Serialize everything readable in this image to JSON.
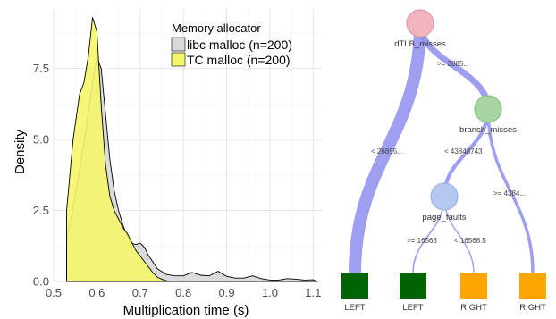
{
  "chart_data": [
    {
      "type": "area",
      "subtype": "density",
      "xlabel": "Multiplication time (s)",
      "ylabel": "Density",
      "xlim": [
        0.5,
        1.12
      ],
      "ylim": [
        0,
        9.6
      ],
      "xticks": [
        0.5,
        0.6,
        0.7,
        0.8,
        0.9,
        1.0,
        1.1
      ],
      "xtick_labels": [
        "0.5",
        "0.6",
        "0.7",
        "0.8",
        "0.9",
        "1.0",
        "1.1"
      ],
      "yticks": [
        0.0,
        2.5,
        5.0,
        7.5
      ],
      "ytick_labels": [
        "0.0",
        "2.5",
        "5.0",
        "7.5"
      ],
      "grid": true,
      "legend": {
        "title": "Memory allocator",
        "position": "top-right"
      },
      "series": [
        {
          "name": "libc malloc (n=200)",
          "fill": "#d9d9d9",
          "x": [
            0.53,
            0.545,
            0.56,
            0.575,
            0.59,
            0.6,
            0.61,
            0.62,
            0.63,
            0.64,
            0.65,
            0.66,
            0.67,
            0.68,
            0.69,
            0.7,
            0.71,
            0.72,
            0.74,
            0.76,
            0.78,
            0.8,
            0.82,
            0.84,
            0.86,
            0.88,
            0.9,
            0.92,
            0.94,
            0.96,
            0.98,
            1.0,
            1.02,
            1.04,
            1.06,
            1.08,
            1.1,
            1.11
          ],
          "values": [
            1.5,
            2.6,
            3.9,
            5.4,
            7.0,
            7.9,
            7.5,
            5.9,
            4.3,
            3.2,
            2.5,
            2.0,
            1.6,
            1.35,
            1.3,
            1.35,
            1.2,
            0.9,
            0.45,
            0.25,
            0.2,
            0.2,
            0.32,
            0.22,
            0.2,
            0.36,
            0.18,
            0.12,
            0.12,
            0.2,
            0.1,
            0.05,
            0.05,
            0.1,
            0.08,
            0.05,
            0.06,
            0.0
          ]
        },
        {
          "name": "TC malloc (n=200)",
          "fill": "#f5f56a",
          "x": [
            0.53,
            0.545,
            0.56,
            0.57,
            0.58,
            0.59,
            0.6,
            0.61,
            0.62,
            0.63,
            0.64,
            0.65,
            0.66,
            0.67,
            0.68,
            0.69,
            0.7,
            0.71,
            0.72,
            0.73,
            0.74,
            0.75,
            0.76,
            0.77
          ],
          "values": [
            2.5,
            5.0,
            6.6,
            7.0,
            7.9,
            9.3,
            8.8,
            6.2,
            4.1,
            3.0,
            2.5,
            2.2,
            1.9,
            1.7,
            1.4,
            1.1,
            0.9,
            0.7,
            0.5,
            0.3,
            0.15,
            0.08,
            0.03,
            0.0
          ]
        }
      ]
    },
    {
      "type": "diagram",
      "subtype": "decision-tree",
      "nodes": [
        {
          "id": "dTLB_misses",
          "label": "dTLB_misses",
          "color": "#f2b5c0",
          "stroke": "#e39aa8"
        },
        {
          "id": "branch_misses",
          "label": "branch_misses",
          "color": "#a8d5a2",
          "stroke": "#8cc486"
        },
        {
          "id": "page_faults",
          "label": "page_faults",
          "color": "#b5c8f0",
          "stroke": "#98b2e6"
        },
        {
          "id": "leaf1",
          "label": "LEFT",
          "color": "#006400"
        },
        {
          "id": "leaf2",
          "label": "LEFT",
          "color": "#006400"
        },
        {
          "id": "leaf3",
          "label": "RIGHT",
          "color": "#ffa500"
        },
        {
          "id": "leaf4",
          "label": "RIGHT",
          "color": "#ffa500"
        }
      ],
      "edges": [
        {
          "from": "dTLB_misses",
          "to": "branch_misses",
          "label": ">= 2885...",
          "weight": 0.5
        },
        {
          "from": "dTLB_misses",
          "to": "leaf1",
          "label": "< 26855...",
          "weight": 1.0
        },
        {
          "from": "branch_misses",
          "to": "page_faults",
          "label": "< 43848743",
          "weight": 0.3
        },
        {
          "from": "branch_misses",
          "to": "leaf4",
          "label": ">= 4384...",
          "weight": 0.25
        },
        {
          "from": "page_faults",
          "to": "leaf2",
          "label": ">= 16563",
          "weight": 0.12
        },
        {
          "from": "page_faults",
          "to": "leaf3",
          "label": "< 16568.5",
          "weight": 0.1
        }
      ],
      "edge_color": "#8e8ef0"
    }
  ]
}
